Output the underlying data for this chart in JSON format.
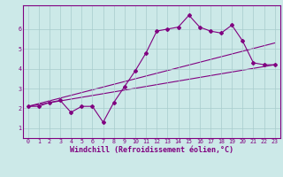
{
  "xlabel": "Windchill (Refroidissement éolien,°C)",
  "background_color": "#cce9e8",
  "line_color": "#800080",
  "grid_color": "#a8cccc",
  "curve1_x": [
    0,
    1,
    2,
    3,
    4,
    5,
    6,
    7,
    8,
    9,
    10,
    11,
    12,
    13,
    14,
    15,
    16,
    17,
    18,
    19,
    20,
    21,
    22,
    23
  ],
  "curve1_y": [
    2.1,
    2.1,
    2.3,
    2.4,
    1.8,
    2.1,
    2.1,
    1.3,
    2.3,
    3.1,
    3.9,
    4.8,
    5.9,
    6.0,
    6.1,
    6.7,
    6.1,
    5.9,
    5.8,
    6.2,
    5.4,
    4.3,
    4.2,
    4.2
  ],
  "curve2_x": [
    0,
    23
  ],
  "curve2_y": [
    2.1,
    5.3
  ],
  "curve3_x": [
    0,
    23
  ],
  "curve3_y": [
    2.1,
    4.2
  ],
  "xlim": [
    -0.5,
    23.5
  ],
  "ylim": [
    0.5,
    7.2
  ],
  "yticks": [
    1,
    2,
    3,
    4,
    5,
    6
  ],
  "xticks": [
    0,
    1,
    2,
    3,
    4,
    5,
    6,
    7,
    8,
    9,
    10,
    11,
    12,
    13,
    14,
    15,
    16,
    17,
    18,
    19,
    20,
    21,
    22,
    23
  ],
  "tick_fontsize": 4.8,
  "xlabel_fontsize": 6.0,
  "marker": "D",
  "markersize": 2.0,
  "linewidth": 0.8
}
